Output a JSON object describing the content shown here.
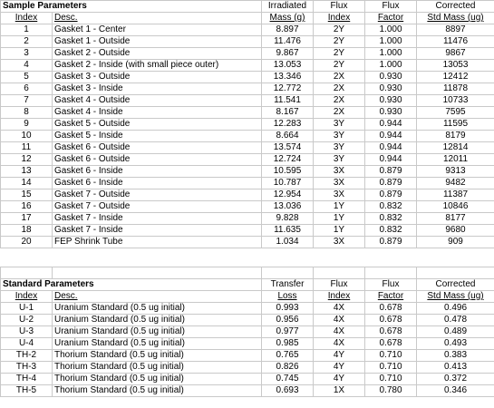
{
  "sample_section": {
    "title": "Sample Parameters",
    "header_top": {
      "mass": "Irradiated",
      "flux_index": "Flux",
      "flux_factor": "Flux",
      "corrected": "Corrected"
    },
    "header_bottom": {
      "index": "Index",
      "desc": "Desc.",
      "mass": "Mass (g)",
      "flux_index": "Index",
      "flux_factor": "Factor",
      "corrected": "Std Mass (ug)"
    },
    "rows": [
      {
        "index": "1",
        "desc": "Gasket 1 - Center",
        "mass": "8.897",
        "flux_index": "2Y",
        "flux_factor": "1.000",
        "corrected": "8897"
      },
      {
        "index": "2",
        "desc": "Gasket 1 - Outside",
        "mass": "11.476",
        "flux_index": "2Y",
        "flux_factor": "1.000",
        "corrected": "11476"
      },
      {
        "index": "3",
        "desc": "Gasket 2 - Outside",
        "mass": "9.867",
        "flux_index": "2Y",
        "flux_factor": "1.000",
        "corrected": "9867"
      },
      {
        "index": "4",
        "desc": "Gasket 2 - Inside (with small piece outer)",
        "mass": "13.053",
        "flux_index": "2Y",
        "flux_factor": "1.000",
        "corrected": "13053"
      },
      {
        "index": "5",
        "desc": "Gasket 3 - Outside",
        "mass": "13.346",
        "flux_index": "2X",
        "flux_factor": "0.930",
        "corrected": "12412"
      },
      {
        "index": "6",
        "desc": "Gasket 3 - Inside",
        "mass": "12.772",
        "flux_index": "2X",
        "flux_factor": "0.930",
        "corrected": "11878"
      },
      {
        "index": "7",
        "desc": "Gasket 4 - Outside",
        "mass": "11.541",
        "flux_index": "2X",
        "flux_factor": "0.930",
        "corrected": "10733"
      },
      {
        "index": "8",
        "desc": "Gasket 4 - Inside",
        "mass": "8.167",
        "flux_index": "2X",
        "flux_factor": "0.930",
        "corrected": "7595"
      },
      {
        "index": "9",
        "desc": "Gasket 5 - Outside",
        "mass": "12.283",
        "flux_index": "3Y",
        "flux_factor": "0.944",
        "corrected": "11595"
      },
      {
        "index": "10",
        "desc": "Gasket 5 - Inside",
        "mass": "8.664",
        "flux_index": "3Y",
        "flux_factor": "0.944",
        "corrected": "8179"
      },
      {
        "index": "11",
        "desc": "Gasket 6 - Outside",
        "mass": "13.574",
        "flux_index": "3Y",
        "flux_factor": "0.944",
        "corrected": "12814"
      },
      {
        "index": "12",
        "desc": "Gasket 6 - Outside",
        "mass": "12.724",
        "flux_index": "3Y",
        "flux_factor": "0.944",
        "corrected": "12011"
      },
      {
        "index": "13",
        "desc": "Gasket 6 - Inside",
        "mass": "10.595",
        "flux_index": "3X",
        "flux_factor": "0.879",
        "corrected": "9313"
      },
      {
        "index": "14",
        "desc": "Gasket 6 - Inside",
        "mass": "10.787",
        "flux_index": "3X",
        "flux_factor": "0.879",
        "corrected": "9482"
      },
      {
        "index": "15",
        "desc": "Gasket 7 - Outside",
        "mass": "12.954",
        "flux_index": "3X",
        "flux_factor": "0.879",
        "corrected": "11387"
      },
      {
        "index": "16",
        "desc": "Gasket 7 - Outside",
        "mass": "13.036",
        "flux_index": "1Y",
        "flux_factor": "0.832",
        "corrected": "10846"
      },
      {
        "index": "17",
        "desc": "Gasket 7 - Inside",
        "mass": "9.828",
        "flux_index": "1Y",
        "flux_factor": "0.832",
        "corrected": "8177"
      },
      {
        "index": "18",
        "desc": "Gasket 7 - Inside",
        "mass": "11.635",
        "flux_index": "1Y",
        "flux_factor": "0.832",
        "corrected": "9680"
      },
      {
        "index": "20",
        "desc": "FEP Shrink Tube",
        "mass": "1.034",
        "flux_index": "3X",
        "flux_factor": "0.879",
        "corrected": "909"
      }
    ]
  },
  "standard_section": {
    "title": "Standard Parameters",
    "header_top": {
      "loss": "Transfer",
      "flux_index": "Flux",
      "flux_factor": "Flux",
      "corrected": "Corrected"
    },
    "header_bottom": {
      "index": "Index",
      "desc": "Desc.",
      "loss": "Loss",
      "flux_index": "Index",
      "flux_factor": "Factor",
      "corrected": "Std Mass (ug)"
    },
    "rows": [
      {
        "index": "U-1",
        "desc": "Uranium Standard (0.5 ug initial)",
        "loss": "0.993",
        "flux_index": "4X",
        "flux_factor": "0.678",
        "corrected": "0.496"
      },
      {
        "index": "U-2",
        "desc": "Uranium Standard (0.5 ug initial)",
        "loss": "0.956",
        "flux_index": "4X",
        "flux_factor": "0.678",
        "corrected": "0.478"
      },
      {
        "index": "U-3",
        "desc": "Uranium Standard (0.5 ug initial)",
        "loss": "0.977",
        "flux_index": "4X",
        "flux_factor": "0.678",
        "corrected": "0.489"
      },
      {
        "index": "U-4",
        "desc": "Uranium Standard (0.5 ug initial)",
        "loss": "0.985",
        "flux_index": "4X",
        "flux_factor": "0.678",
        "corrected": "0.493"
      },
      {
        "index": "TH-2",
        "desc": "Thorium Standard (0.5 ug initial)",
        "loss": "0.765",
        "flux_index": "4Y",
        "flux_factor": "0.710",
        "corrected": "0.383"
      },
      {
        "index": "TH-3",
        "desc": "Thorium Standard (0.5 ug initial)",
        "loss": "0.826",
        "flux_index": "4Y",
        "flux_factor": "0.710",
        "corrected": "0.413"
      },
      {
        "index": "TH-4",
        "desc": "Thorium Standard (0.5 ug initial)",
        "loss": "0.745",
        "flux_index": "4Y",
        "flux_factor": "0.710",
        "corrected": "0.372"
      },
      {
        "index": "TH-5",
        "desc": "Thorium Standard (0.5 ug initial)",
        "loss": "0.693",
        "flux_index": "1X",
        "flux_factor": "0.780",
        "corrected": "0.346"
      }
    ]
  }
}
